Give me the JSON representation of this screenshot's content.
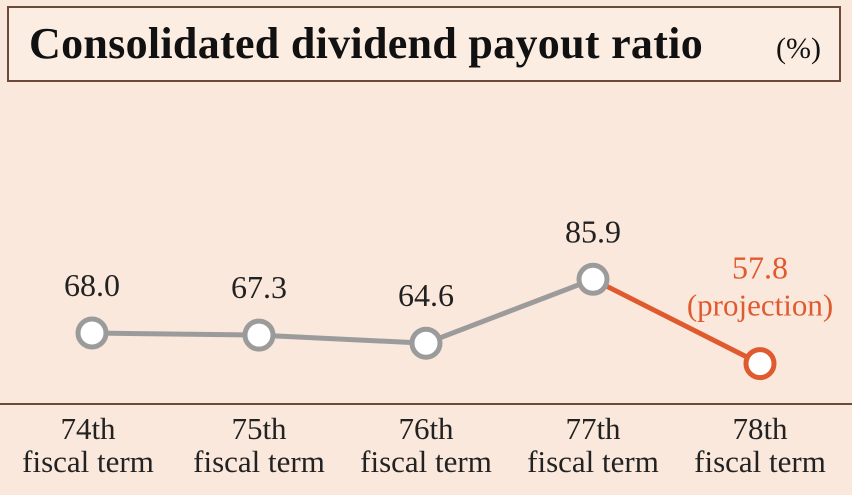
{
  "chart_data": {
    "type": "line",
    "title": "Consolidated dividend payout ratio",
    "unit": "(%)",
    "categories": [
      [
        "74th",
        "fiscal term"
      ],
      [
        "75th",
        "fiscal term"
      ],
      [
        "76th",
        "fiscal term"
      ],
      [
        "77th",
        "fiscal term"
      ],
      [
        "78th",
        "fiscal term"
      ]
    ],
    "values": [
      68.0,
      67.3,
      64.6,
      85.9,
      57.8
    ],
    "value_labels": [
      "68.0",
      "67.3",
      "64.6",
      "85.9",
      "57.8"
    ],
    "projection_index": 4,
    "projection_label": "(projection)",
    "ylim": [
      0,
      100
    ],
    "grid": false,
    "colors": {
      "actual": "#9b9b9b",
      "projection": "#e05a2f",
      "label": "#222222",
      "projection_label": "#e05a2f"
    }
  }
}
